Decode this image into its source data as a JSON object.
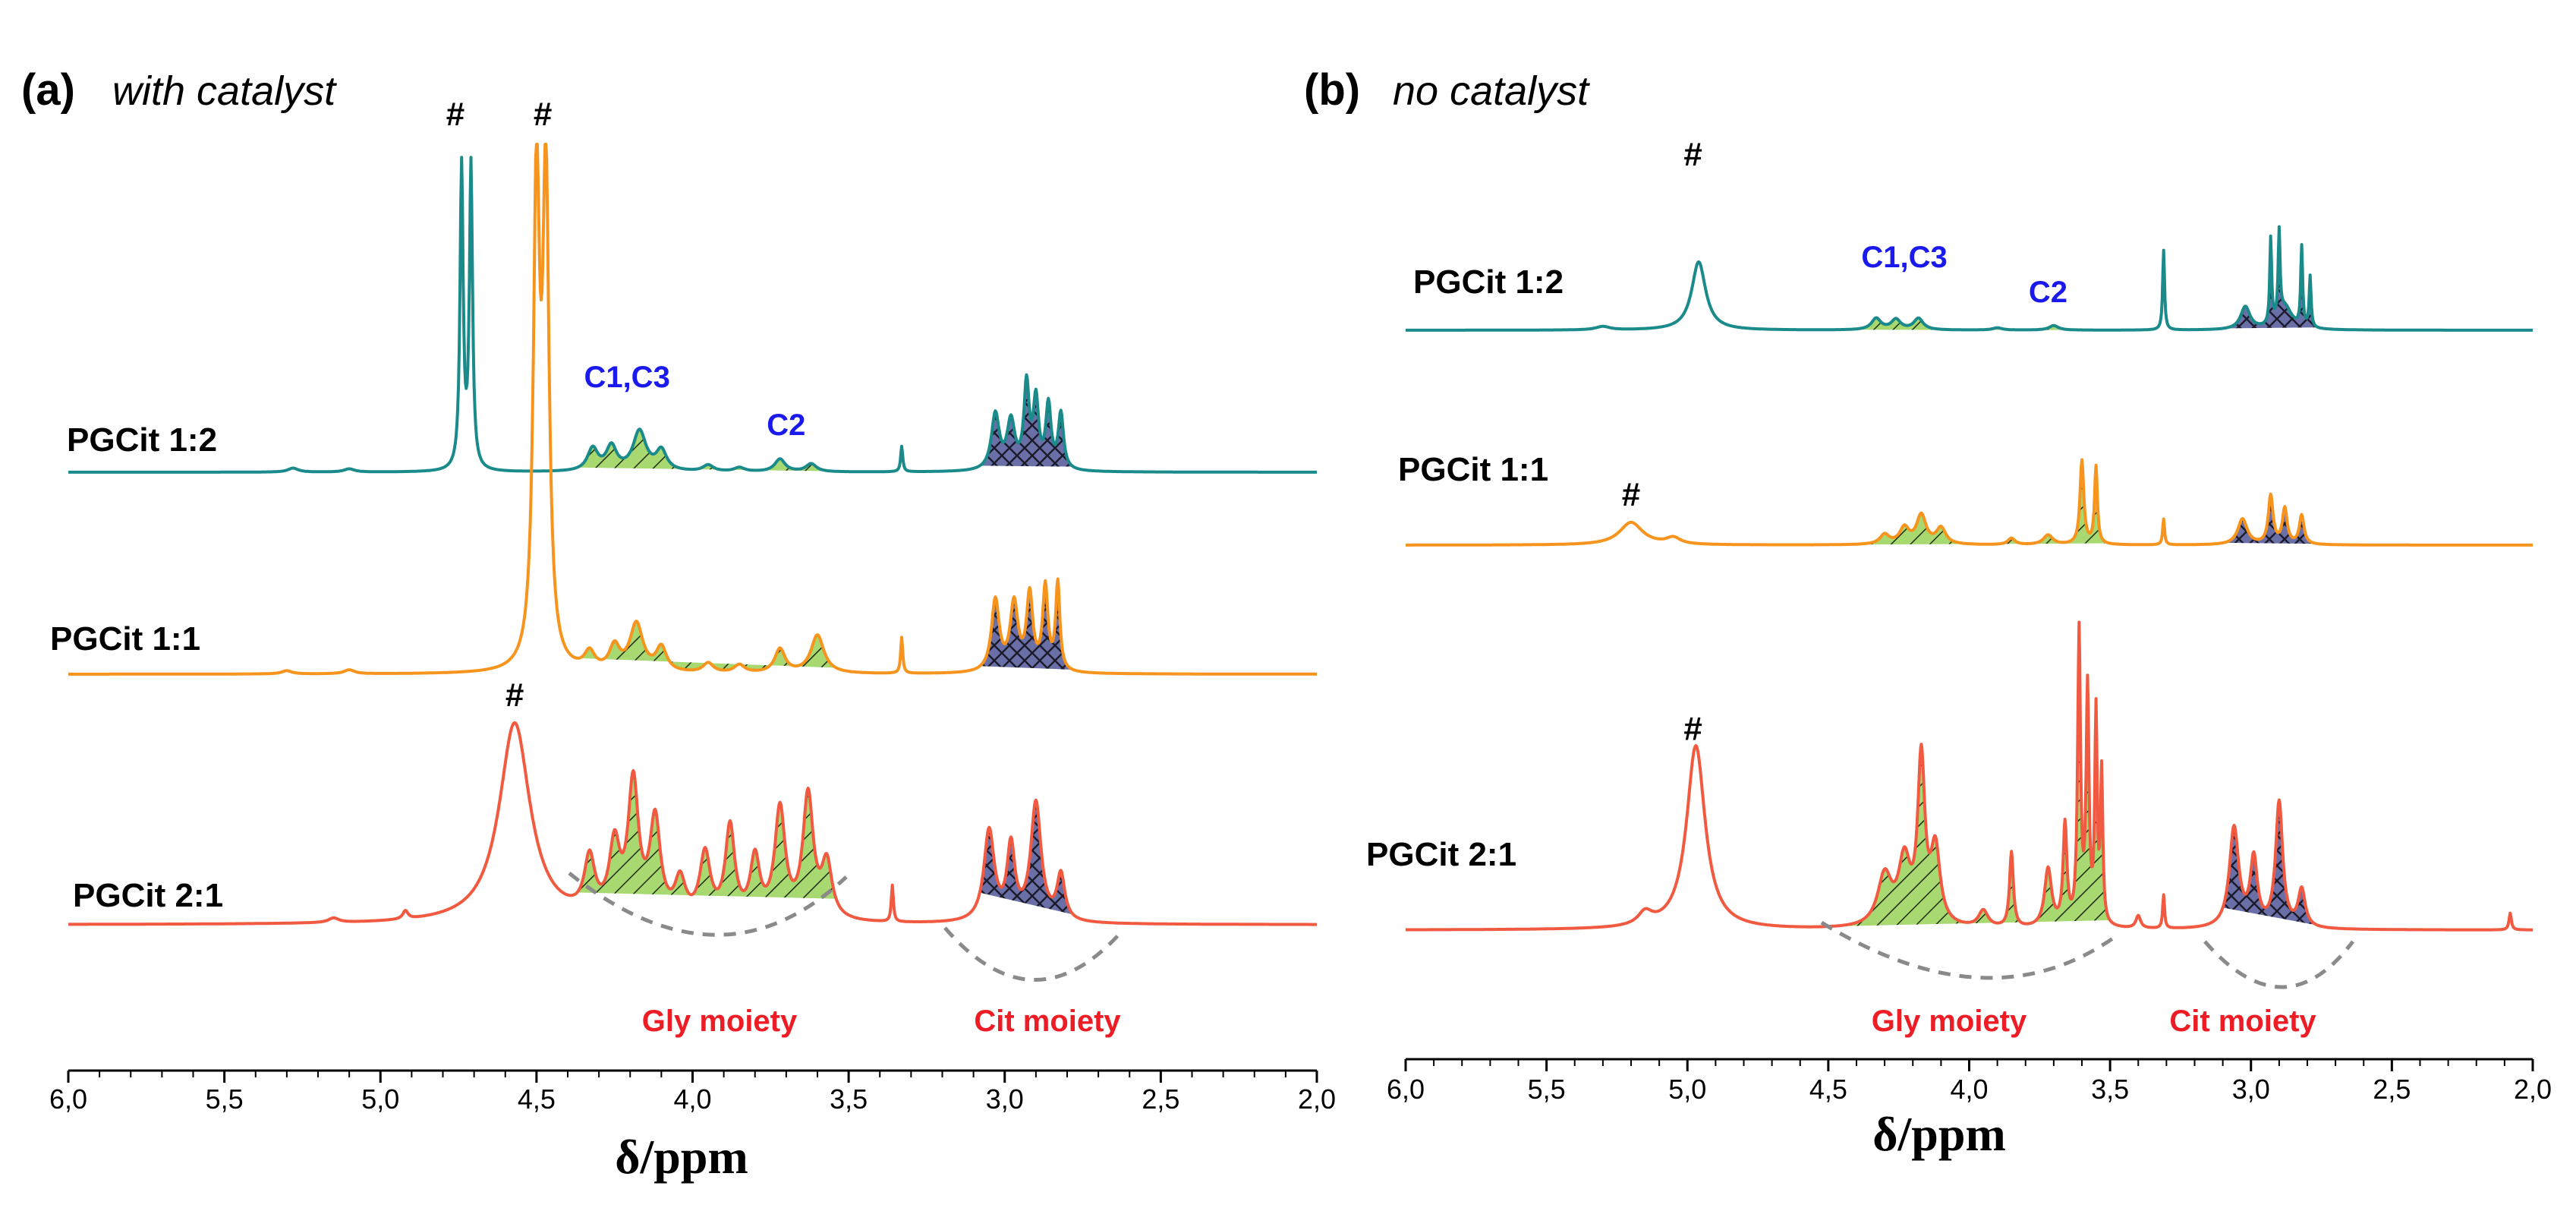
{
  "chart_data": [
    {
      "type": "line",
      "panel_letter": "(a)",
      "condition": "with catalyst",
      "xlabel": "δ/ppm",
      "xlim": [
        6.0,
        2.0
      ],
      "x_ticks": [
        "6,0",
        "5,5",
        "5,0",
        "4,5",
        "4,0",
        "3,5",
        "3,0",
        "2,5",
        "2,0"
      ],
      "series": [
        {
          "name": "PGCit 1:2",
          "color": "#1a8a8a",
          "peaks": [
            [
              4.74,
              3.8,
              0.006
            ],
            [
              4.71,
              3.8,
              0.006
            ],
            [
              5.28,
              0.05,
              0.02
            ],
            [
              5.1,
              0.04,
              0.02
            ],
            [
              4.32,
              0.28,
              0.02
            ],
            [
              4.26,
              0.3,
              0.02
            ],
            [
              4.17,
              0.5,
              0.025
            ],
            [
              4.1,
              0.25,
              0.02
            ],
            [
              3.95,
              0.08,
              0.02
            ],
            [
              3.85,
              0.05,
              0.02
            ],
            [
              3.72,
              0.16,
              0.02
            ],
            [
              3.62,
              0.1,
              0.02
            ],
            [
              3.33,
              0.32,
              0.004
            ],
            [
              3.03,
              0.7,
              0.015
            ],
            [
              2.98,
              0.6,
              0.015
            ],
            [
              2.93,
              1.05,
              0.01
            ],
            [
              2.9,
              0.85,
              0.01
            ],
            [
              2.86,
              0.8,
              0.01
            ],
            [
              2.82,
              0.7,
              0.01
            ]
          ],
          "hash": [
            4.72
          ]
        },
        {
          "name": "PGCit 1:1",
          "color": "#f7941d",
          "peaks": [
            [
              4.5,
              6.0,
              0.012
            ],
            [
              4.47,
              6.0,
              0.012
            ],
            [
              5.3,
              0.04,
              0.02
            ],
            [
              5.1,
              0.05,
              0.02
            ],
            [
              4.33,
              0.22,
              0.02
            ],
            [
              4.25,
              0.3,
              0.02
            ],
            [
              4.18,
              0.6,
              0.025
            ],
            [
              4.1,
              0.3,
              0.02
            ],
            [
              3.95,
              0.12,
              0.02
            ],
            [
              3.85,
              0.1,
              0.02
            ],
            [
              3.72,
              0.3,
              0.02
            ],
            [
              3.6,
              0.48,
              0.025
            ],
            [
              3.33,
              0.45,
              0.004
            ],
            [
              3.03,
              0.9,
              0.015
            ],
            [
              2.97,
              0.85,
              0.015
            ],
            [
              2.92,
              0.95,
              0.012
            ],
            [
              2.87,
              1.05,
              0.01
            ],
            [
              2.83,
              1.1,
              0.008
            ]
          ],
          "hash": [
            4.49
          ]
        },
        {
          "name": "PGCit 2:1",
          "color": "#f15a40",
          "peaks": [
            [
              4.57,
              2.2,
              0.06
            ],
            [
              5.15,
              0.05,
              0.02
            ],
            [
              4.92,
              0.09,
              0.01
            ],
            [
              4.33,
              0.6,
              0.02
            ],
            [
              4.25,
              0.75,
              0.02
            ],
            [
              4.19,
              1.45,
              0.02
            ],
            [
              4.12,
              1.05,
              0.02
            ],
            [
              4.04,
              0.4,
              0.02
            ],
            [
              3.96,
              0.7,
              0.02
            ],
            [
              3.88,
              1.0,
              0.018
            ],
            [
              3.8,
              0.65,
              0.018
            ],
            [
              3.72,
              1.2,
              0.02
            ],
            [
              3.63,
              1.35,
              0.02
            ],
            [
              3.57,
              0.6,
              0.02
            ],
            [
              3.36,
              0.4,
              0.004
            ],
            [
              3.05,
              1.0,
              0.02
            ],
            [
              2.98,
              0.8,
              0.015
            ],
            [
              2.9,
              1.3,
              0.02
            ],
            [
              2.82,
              0.5,
              0.015
            ]
          ],
          "hash": [
            4.57
          ]
        }
      ],
      "annotations": [
        {
          "text": "C1,C3",
          "x": 4.21,
          "series": 0
        },
        {
          "text": "C2",
          "x": 3.7,
          "series": 0
        },
        {
          "text": "#",
          "x": 4.76,
          "series": 0
        },
        {
          "text": "#",
          "x": 4.48,
          "series": 0
        },
        {
          "text": "#",
          "x": 4.57,
          "series": 2
        },
        {
          "text": "Gly moiety",
          "x": 3.97
        },
        {
          "text": "Cit moiety",
          "x": 2.9
        }
      ],
      "shaded_regions": [
        {
          "moiety": "Gly",
          "range": [
            4.37,
            3.54
          ],
          "fill": "#a8d870",
          "pattern": "hatch"
        },
        {
          "moiety": "Cit",
          "range": [
            3.08,
            2.78
          ],
          "fill": "#6b6fa8",
          "pattern": "crosshatch"
        }
      ]
    },
    {
      "type": "line",
      "panel_letter": "(b)",
      "condition": "no catalyst",
      "xlabel": "δ/ppm",
      "xlim": [
        6.0,
        2.0
      ],
      "x_ticks": [
        "6,0",
        "5,5",
        "5,0",
        "4,5",
        "4,0",
        "3,5",
        "3,0",
        "2,5",
        "2,0"
      ],
      "series": [
        {
          "name": "PGCit 1:2",
          "color": "#1a8a8a",
          "peaks": [
            [
              4.96,
              0.6,
              0.03
            ],
            [
              5.3,
              0.03,
              0.03
            ],
            [
              4.33,
              0.1,
              0.02
            ],
            [
              4.26,
              0.09,
              0.02
            ],
            [
              4.18,
              0.1,
              0.02
            ],
            [
              3.9,
              0.02,
              0.02
            ],
            [
              3.7,
              0.04,
              0.02
            ],
            [
              3.31,
              0.7,
              0.004
            ],
            [
              3.02,
              0.2,
              0.02
            ],
            [
              2.93,
              0.75,
              0.004
            ],
            [
              2.9,
              0.75,
              0.004
            ],
            [
              2.82,
              0.7,
              0.004
            ],
            [
              2.79,
              0.45,
              0.004
            ],
            [
              2.88,
              0.2,
              0.03
            ]
          ],
          "hash": [
            4.97
          ]
        },
        {
          "name": "PGCit 1:1",
          "color": "#f7941d",
          "peaks": [
            [
              5.2,
              0.35,
              0.05
            ],
            [
              5.05,
              0.1,
              0.03
            ],
            [
              4.3,
              0.15,
              0.02
            ],
            [
              4.23,
              0.25,
              0.02
            ],
            [
              4.17,
              0.45,
              0.02
            ],
            [
              4.1,
              0.25,
              0.02
            ],
            [
              3.85,
              0.1,
              0.015
            ],
            [
              3.72,
              0.15,
              0.02
            ],
            [
              3.6,
              1.3,
              0.008
            ],
            [
              3.55,
              1.2,
              0.006
            ],
            [
              3.31,
              0.4,
              0.004
            ],
            [
              3.03,
              0.4,
              0.02
            ],
            [
              2.93,
              0.75,
              0.01
            ],
            [
              2.88,
              0.55,
              0.01
            ],
            [
              2.82,
              0.45,
              0.01
            ]
          ],
          "hash": [
            5.2
          ]
        },
        {
          "name": "PGCit 2:1",
          "color": "#f15a40",
          "peaks": [
            [
              4.97,
              2.2,
              0.04
            ],
            [
              5.15,
              0.15,
              0.03
            ],
            [
              4.3,
              0.6,
              0.03
            ],
            [
              4.23,
              0.75,
              0.025
            ],
            [
              4.17,
              1.95,
              0.015
            ],
            [
              4.12,
              0.9,
              0.02
            ],
            [
              3.95,
              0.2,
              0.02
            ],
            [
              3.85,
              0.9,
              0.008
            ],
            [
              3.72,
              0.7,
              0.015
            ],
            [
              3.66,
              1.2,
              0.008
            ],
            [
              3.61,
              3.5,
              0.006
            ],
            [
              3.58,
              2.8,
              0.006
            ],
            [
              3.55,
              2.5,
              0.005
            ],
            [
              3.53,
              1.8,
              0.005
            ],
            [
              3.4,
              0.15,
              0.01
            ],
            [
              3.31,
              0.4,
              0.004
            ],
            [
              3.06,
              1.2,
              0.02
            ],
            [
              2.99,
              0.8,
              0.015
            ],
            [
              2.9,
              1.5,
              0.015
            ],
            [
              2.82,
              0.45,
              0.015
            ],
            [
              2.08,
              0.2,
              0.005
            ]
          ],
          "hash": [
            4.97
          ]
        }
      ],
      "annotations": [
        {
          "text": "C1,C3",
          "x": 4.23,
          "series": 0
        },
        {
          "text": "C2",
          "x": 3.72,
          "series": 0
        },
        {
          "text": "#",
          "x": 4.98,
          "series": 0
        },
        {
          "text": "#",
          "x": 5.2,
          "series": 1
        },
        {
          "text": "#",
          "x": 4.98,
          "series": 2
        },
        {
          "text": "Gly moiety",
          "x": 4.0
        },
        {
          "text": "Cit moiety",
          "x": 2.9
        }
      ],
      "shaded_regions": [
        {
          "moiety": "Gly",
          "range": [
            4.5,
            3.5
          ],
          "fill": "#a8d870",
          "pattern": "hatch"
        },
        {
          "moiety": "Cit",
          "range": [
            3.1,
            2.76
          ],
          "fill": "#6b6fa8",
          "pattern": "crosshatch"
        }
      ]
    }
  ]
}
